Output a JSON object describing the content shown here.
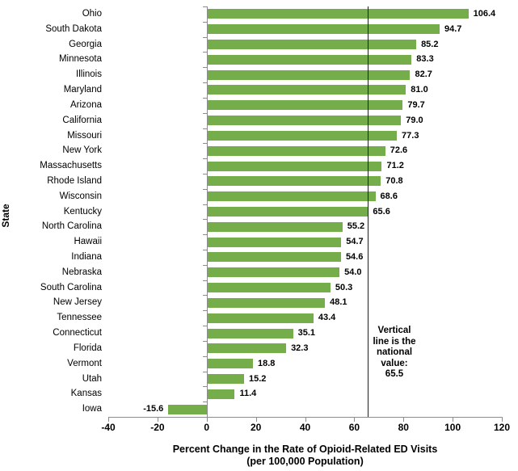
{
  "chart_data": {
    "type": "bar",
    "orientation": "horizontal",
    "categories": [
      "Ohio",
      "South Dakota",
      "Georgia",
      "Minnesota",
      "Illinois",
      "Maryland",
      "Arizona",
      "California",
      "Missouri",
      "New York",
      "Massachusetts",
      "Rhode Island",
      "Wisconsin",
      "Kentucky",
      "North Carolina",
      "Hawaii",
      "Indiana",
      "Nebraska",
      "South Carolina",
      "New Jersey",
      "Tennessee",
      "Connecticut",
      "Florida",
      "Vermont",
      "Utah",
      "Kansas",
      "Iowa"
    ],
    "values": [
      106.4,
      94.7,
      85.2,
      83.3,
      82.7,
      81.0,
      79.7,
      79.0,
      77.3,
      72.6,
      71.2,
      70.8,
      68.6,
      65.6,
      55.2,
      54.7,
      54.6,
      54.0,
      50.3,
      48.1,
      43.4,
      35.1,
      32.3,
      18.8,
      15.2,
      11.4,
      -15.6
    ],
    "xlabel_line1": "Percent Change in the Rate of Opioid-Related ED Visits",
    "xlabel_line2": "(per 100,000 Population)",
    "ylabel": "State",
    "xlim": [
      -40,
      120
    ],
    "xticks": [
      -40,
      -20,
      0,
      20,
      40,
      60,
      80,
      100,
      120
    ],
    "grid": "off",
    "legend": "none",
    "reference_line": {
      "value": 65.5,
      "label": "Vertical\nline is the\nnational\nvalue:\n65.5"
    },
    "colors": {
      "bar": "#76AD4B",
      "axis": "#8C8C8C",
      "reference_line": "#1F1F1F",
      "text": "#000000"
    }
  }
}
